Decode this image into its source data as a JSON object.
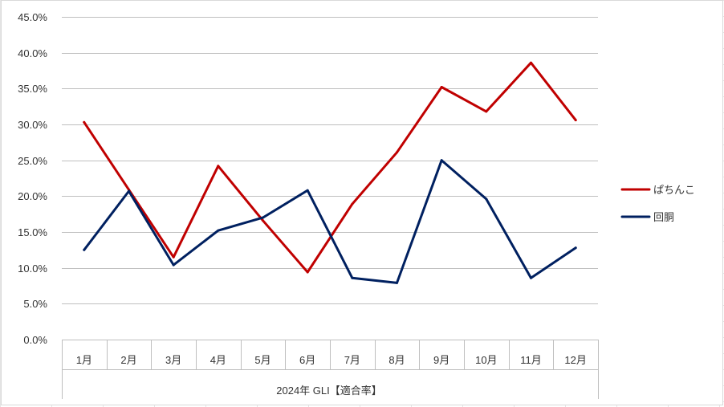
{
  "chart_data": {
    "type": "line",
    "title": "",
    "xlabel": "2024年 GLI【適合率】",
    "ylabel": "",
    "categories": [
      "1月",
      "2月",
      "3月",
      "4月",
      "5月",
      "6月",
      "7月",
      "8月",
      "9月",
      "10月",
      "11月",
      "12月"
    ],
    "series": [
      {
        "name": "ぱちんこ",
        "color": "#C00000",
        "values": [
          30.3,
          20.9,
          11.5,
          24.2,
          16.6,
          9.4,
          18.9,
          26.1,
          35.2,
          31.8,
          38.6,
          30.6
        ]
      },
      {
        "name": "回胴",
        "color": "#002060",
        "values": [
          12.5,
          20.7,
          10.4,
          15.2,
          17.0,
          20.8,
          8.6,
          7.9,
          25.0,
          19.6,
          8.6,
          12.8
        ]
      }
    ],
    "ylim": [
      0,
      45
    ],
    "ytick_step": 5,
    "ytick_labels": [
      "0.0%",
      "5.0%",
      "10.0%",
      "15.0%",
      "20.0%",
      "25.0%",
      "30.0%",
      "35.0%",
      "40.0%",
      "45.0%"
    ],
    "grid": true,
    "legend_position": "right"
  }
}
